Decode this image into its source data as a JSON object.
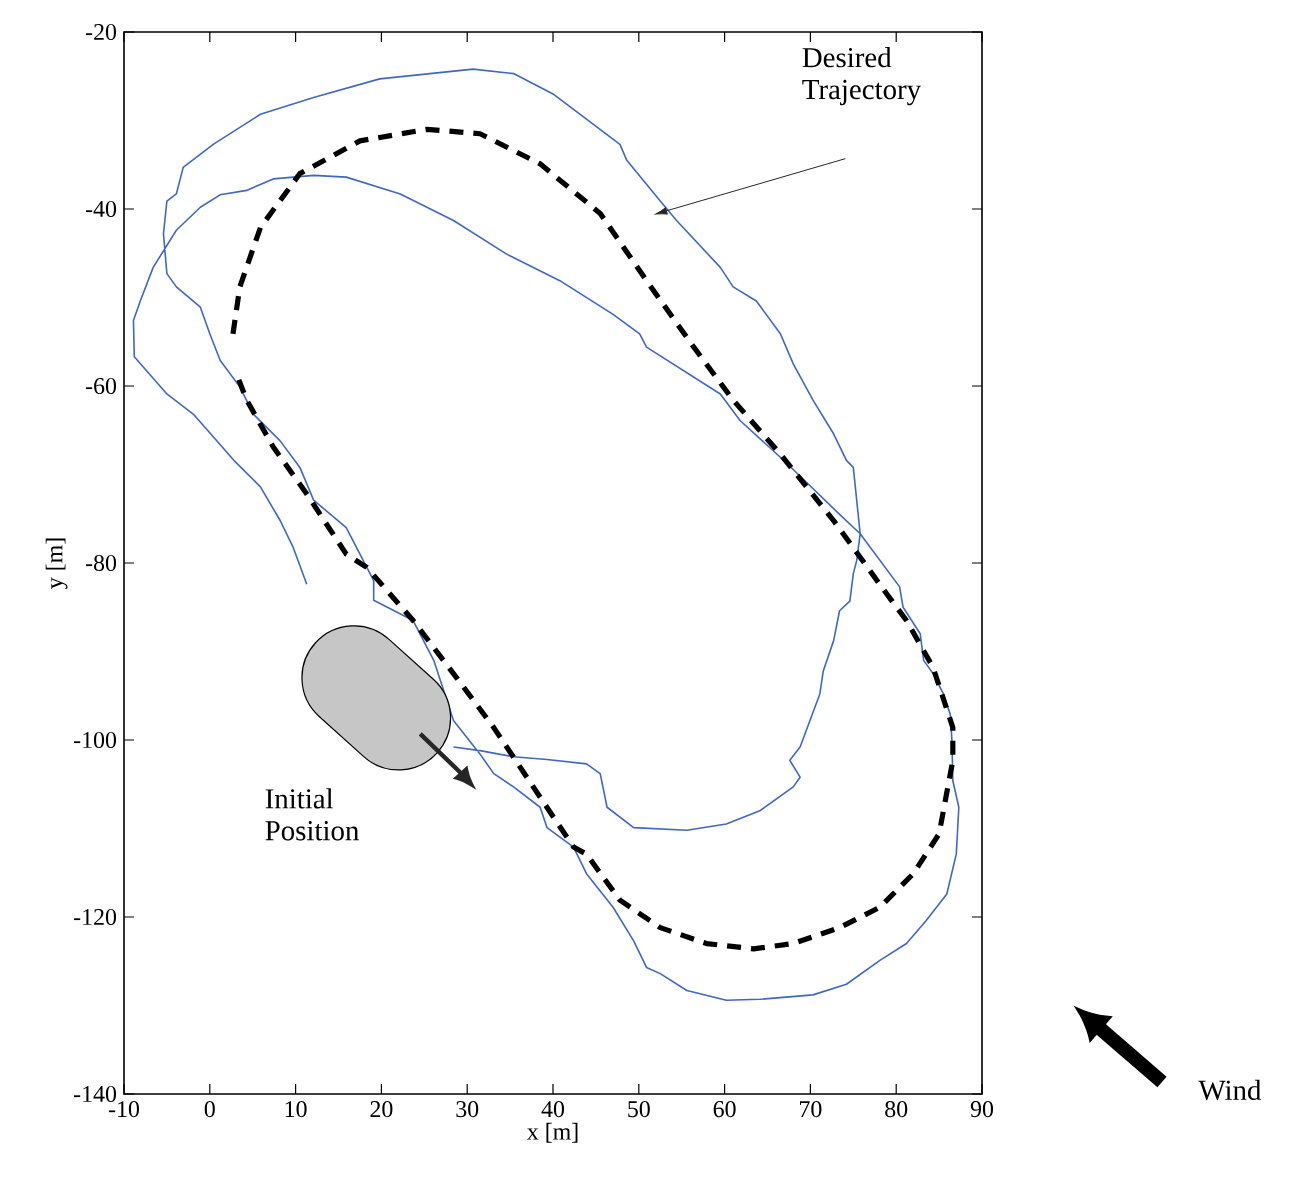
{
  "chart_data": {
    "type": "line",
    "xlabel": "x [m]",
    "ylabel": "y [m]",
    "xlim": [
      -10,
      90
    ],
    "ylim": [
      -140,
      -20
    ],
    "xticks": [
      -10,
      0,
      10,
      20,
      30,
      40,
      50,
      60,
      70,
      80,
      90
    ],
    "yticks": [
      -140,
      -120,
      -100,
      -80,
      -60,
      -40,
      -20
    ],
    "marker": "none",
    "series": [
      {
        "color": "#3f68c0",
        "line_style": "solid",
        "x": [
          28.4,
          31.5,
          35.4,
          39.3,
          43.9,
          45.5,
          46.3,
          49.4,
          55.6,
          60.2,
          64.1,
          68.0,
          68.8,
          67.6,
          68.8,
          71.1,
          71.5,
          72.7,
          73.4,
          74.6,
          75.0,
          75.4,
          75.8,
          75.0,
          74.2,
          72.7,
          70.3,
          68.0,
          66.5,
          63.7,
          61.0,
          59.5,
          54.4,
          52.5,
          48.6,
          47.8,
          40.0,
          35.4,
          30.7,
          19.8,
          12.1,
          5.9,
          0.4,
          -3.1,
          -3.9,
          -5.0,
          -5.4,
          -5.0,
          -3.9,
          -1.1,
          0.0,
          1.2,
          3.5,
          5.1,
          8.2,
          10.5,
          12.1,
          15.9,
          19.1,
          19.1,
          23.7,
          26.1,
          28.4,
          31.5,
          33.1,
          35.4,
          38.5,
          39.3,
          42.4,
          43.9,
          47.0,
          49.4,
          50.9,
          52.5,
          55.6,
          60.2,
          64.1,
          70.3,
          74.2,
          78.1,
          81.2,
          83.5,
          85.9,
          87.0,
          87.3,
          86.6,
          86.5,
          86.3,
          85.5,
          84.3,
          83.2,
          82.8,
          80.8,
          80.4,
          75.8,
          73.4,
          67.0,
          61.8,
          59.5,
          50.9,
          50.1,
          47.0,
          40.8,
          34.6,
          28.4,
          22.2,
          15.9,
          12.1,
          7.4,
          4.3,
          1.2,
          -1.1,
          -3.9,
          -6.6,
          -8.1,
          -8.9,
          -8.8,
          -5.0,
          -1.9,
          2.8,
          5.9,
          8.2,
          9.7,
          11.3
        ],
        "values": [
          -100.8,
          -101.2,
          -101.9,
          -102.2,
          -102.7,
          -103.8,
          -107.6,
          -109.9,
          -110.2,
          -109.5,
          -108.0,
          -105.3,
          -104.2,
          -102.3,
          -100.8,
          -94.8,
          -92.2,
          -88.8,
          -85.4,
          -84.3,
          -81.2,
          -79.7,
          -76.7,
          -69.2,
          -68.4,
          -65.4,
          -61.6,
          -57.5,
          -54.1,
          -50.4,
          -48.8,
          -46.6,
          -41.3,
          -39.1,
          -34.5,
          -32.7,
          -27.0,
          -24.7,
          -24.2,
          -25.3,
          -27.4,
          -29.3,
          -32.7,
          -35.3,
          -38.3,
          -39.1,
          -42.8,
          -47.3,
          -48.8,
          -51.1,
          -54.1,
          -57.1,
          -60.1,
          -63.2,
          -66.2,
          -69.2,
          -72.9,
          -76.0,
          -82.0,
          -84.2,
          -86.5,
          -91.0,
          -97.8,
          -101.6,
          -103.8,
          -105.3,
          -107.6,
          -109.9,
          -112.1,
          -115.1,
          -118.9,
          -122.7,
          -125.7,
          -126.4,
          -128.3,
          -129.4,
          -129.3,
          -128.8,
          -127.6,
          -124.9,
          -123.0,
          -120.4,
          -117.4,
          -112.9,
          -107.6,
          -104.6,
          -100.1,
          -97.1,
          -94.8,
          -92.5,
          -91.0,
          -88.0,
          -85.0,
          -82.7,
          -76.7,
          -74.5,
          -68.5,
          -63.9,
          -60.9,
          -55.6,
          -54.1,
          -51.9,
          -48.1,
          -45.1,
          -41.3,
          -38.3,
          -36.4,
          -36.2,
          -36.6,
          -37.9,
          -38.4,
          -39.8,
          -42.4,
          -46.6,
          -50.4,
          -52.6,
          -56.7,
          -60.9,
          -63.2,
          -68.4,
          -71.4,
          -75.2,
          -78.2,
          -82.4
        ]
      },
      {
        "color": "#000000",
        "line_style": "dashed",
        "x": [
          2.7,
          3.5,
          5.9,
          10.5,
          17.5,
          25.3,
          31.5,
          38.5,
          45.5,
          50.9,
          56.4,
          61.0,
          66.5,
          72.7,
          78.9,
          81.2,
          84.3,
          86.6,
          86.6,
          85.0,
          82.0,
          78.1,
          73.4,
          68.0,
          63.4,
          57.9,
          52.5,
          47.8,
          43.9,
          42.4,
          37.7,
          33.1,
          28.4,
          23.7,
          18.3,
          15.9,
          11.3,
          7.4,
          4.3,
          3.1
        ],
        "values": [
          -54.1,
          -48.8,
          -42.1,
          -36.0,
          -32.3,
          -31.0,
          -31.5,
          -34.9,
          -40.5,
          -48.1,
          -55.6,
          -61.6,
          -67.7,
          -75.2,
          -83.5,
          -86.5,
          -91.8,
          -98.6,
          -102.3,
          -110.6,
          -115.1,
          -118.9,
          -121.2,
          -123.0,
          -123.6,
          -123.0,
          -121.2,
          -118.1,
          -112.9,
          -112.1,
          -105.3,
          -98.6,
          -92.5,
          -86.5,
          -80.5,
          -79.0,
          -72.2,
          -66.9,
          -61.6,
          -58.6
        ]
      }
    ],
    "annotations": [
      "Desired Trajectory",
      "Initial Position",
      "Wind"
    ]
  }
}
